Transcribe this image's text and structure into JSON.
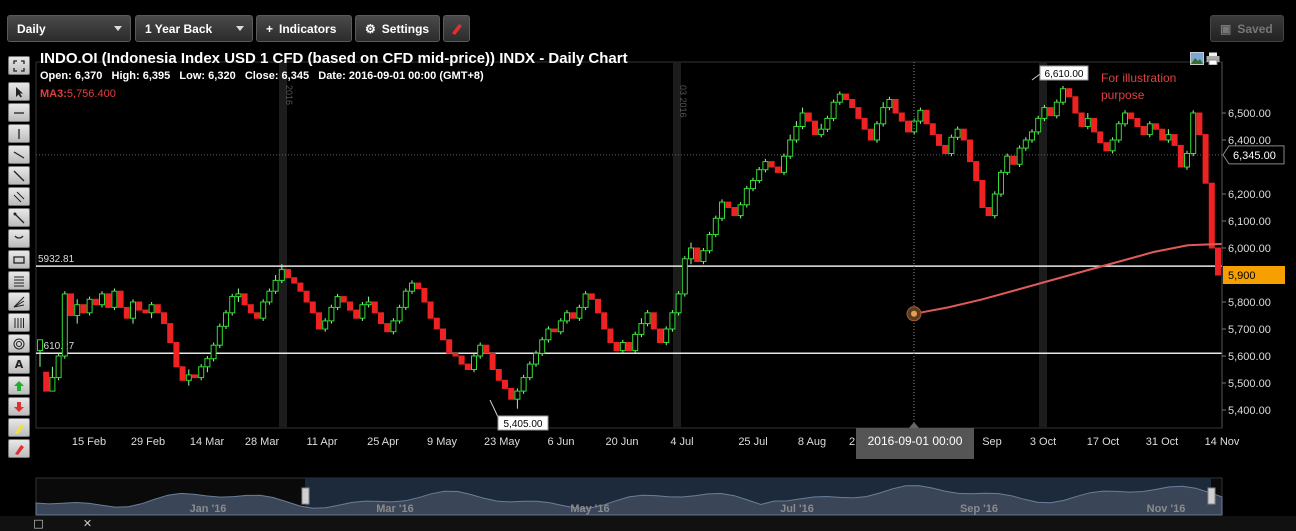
{
  "toolbar": {
    "interval": "Daily",
    "range": "1 Year Back",
    "indicators": "Indicators",
    "settings": "Settings",
    "saved": "Saved"
  },
  "header": {
    "title": "INDO.OI (Indonesia Index USD 1 CFD (based on CFD mid-price)) INDX - Daily Chart",
    "open_label": "Open:",
    "open": "6,370",
    "high_label": "High:",
    "high": "6,395",
    "low_label": "Low:",
    "low": "6,320",
    "close_label": "Close:",
    "close": "6,345",
    "date_label": "Date:",
    "date": "2016-09-01 00:00 (GMT+8)",
    "ma_label": "MA3:",
    "ma_value": "5,756.400"
  },
  "annotation": {
    "text1": "For illustration",
    "text2": "purpose"
  },
  "chart_data": {
    "type": "candlestick",
    "y_ticks": [
      "5,400.00",
      "5,500.00",
      "5,600.00",
      "5,700.00",
      "5,800.00",
      "5,900.00",
      "6,000.00",
      "6,100.00",
      "6,200.00",
      "6,300.00",
      "6,400.00",
      "6,500.00"
    ],
    "y_range": [
      5330,
      6680
    ],
    "x_labels": [
      "15 Feb",
      "29 Feb",
      "14 Mar",
      "28 Mar",
      "11 Apr",
      "25 Apr",
      "9 May",
      "23 May",
      "6 Jun",
      "20 Jun",
      "4 Jul",
      "25 Jul",
      "8 Aug",
      "2",
      "Sep",
      "3 Oct",
      "17 Oct",
      "31 Oct",
      "14 Nov"
    ],
    "crosshair_date": "2016-09-01 00:00",
    "horizontal_lines": [
      {
        "label": "5932.81",
        "value": 5932.81
      },
      {
        "label": "5610.27",
        "value": 5610.27
      }
    ],
    "price_callouts": [
      {
        "text": "6,610.00",
        "value": 6610
      },
      {
        "text": "5,405.00",
        "value": 5405
      }
    ],
    "current_price": {
      "text": "6,345.00",
      "value": 6345
    },
    "last_price": {
      "text": "5,900",
      "value": 5900
    },
    "month_separators": [
      "2016",
      "03 2016"
    ],
    "ma_series_values": [
      5756.4,
      5780,
      5810,
      5845,
      5880,
      5915,
      5950,
      5985,
      6010,
      6015
    ],
    "candles": [
      [
        5620,
        5660,
        5560,
        5540
      ],
      [
        5540,
        5470,
        5560,
        5450
      ],
      [
        5470,
        5520,
        5470,
        5560
      ],
      [
        5520,
        5600,
        5510,
        5610
      ],
      [
        5600,
        5830,
        5590,
        5840
      ],
      [
        5830,
        5750,
        5840,
        5740
      ],
      [
        5750,
        5790,
        5720,
        5810
      ],
      [
        5790,
        5760,
        5800,
        5730
      ],
      [
        5760,
        5810,
        5750,
        5820
      ],
      [
        5810,
        5790,
        5830,
        5770
      ],
      [
        5790,
        5830,
        5780,
        5840
      ],
      [
        5830,
        5780,
        5850,
        5760
      ],
      [
        5780,
        5840,
        5770,
        5850
      ],
      [
        5840,
        5780,
        5860,
        5770
      ],
      [
        5780,
        5740,
        5800,
        5730
      ],
      [
        5740,
        5800,
        5720,
        5810
      ],
      [
        5800,
        5770,
        5820,
        5760
      ],
      [
        5770,
        5760,
        5790,
        5740
      ],
      [
        5760,
        5790,
        5740,
        5800
      ],
      [
        5790,
        5760,
        5810,
        5740
      ],
      [
        5760,
        5720,
        5780,
        5700
      ],
      [
        5720,
        5650,
        5730,
        5640
      ],
      [
        5650,
        5560,
        5660,
        5550
      ],
      [
        5560,
        5510,
        5580,
        5500
      ],
      [
        5510,
        5530,
        5490,
        5550
      ],
      [
        5530,
        5520,
        5550,
        5500
      ],
      [
        5520,
        5560,
        5510,
        5570
      ],
      [
        5560,
        5590,
        5540,
        5600
      ],
      [
        5590,
        5640,
        5580,
        5650
      ],
      [
        5640,
        5710,
        5630,
        5720
      ],
      [
        5710,
        5760,
        5700,
        5770
      ],
      [
        5760,
        5820,
        5750,
        5830
      ],
      [
        5820,
        5830,
        5800,
        5850
      ],
      [
        5830,
        5790,
        5840,
        5770
      ],
      [
        5790,
        5760,
        5810,
        5750
      ],
      [
        5760,
        5740,
        5780,
        5720
      ],
      [
        5740,
        5800,
        5730,
        5810
      ],
      [
        5800,
        5840,
        5790,
        5850
      ],
      [
        5840,
        5880,
        5830,
        5900
      ],
      [
        5880,
        5920,
        5870,
        5940
      ],
      [
        5920,
        5890,
        5930,
        5870
      ],
      [
        5890,
        5870,
        5910,
        5850
      ],
      [
        5870,
        5840,
        5880,
        5820
      ],
      [
        5840,
        5800,
        5850,
        5780
      ],
      [
        5800,
        5760,
        5810,
        5740
      ],
      [
        5760,
        5700,
        5770,
        5690
      ],
      [
        5700,
        5730,
        5690,
        5740
      ],
      [
        5730,
        5780,
        5720,
        5790
      ],
      [
        5780,
        5820,
        5770,
        5830
      ],
      [
        5820,
        5800,
        5840,
        5790
      ],
      [
        5800,
        5770,
        5810,
        5750
      ],
      [
        5770,
        5740,
        5790,
        5730
      ],
      [
        5740,
        5790,
        5730,
        5800
      ],
      [
        5790,
        5800,
        5780,
        5820
      ],
      [
        5800,
        5760,
        5810,
        5750
      ],
      [
        5760,
        5720,
        5770,
        5700
      ],
      [
        5720,
        5690,
        5730,
        5680
      ],
      [
        5690,
        5730,
        5680,
        5740
      ],
      [
        5730,
        5780,
        5720,
        5790
      ],
      [
        5780,
        5840,
        5770,
        5850
      ],
      [
        5840,
        5870,
        5830,
        5880
      ],
      [
        5870,
        5850,
        5890,
        5830
      ],
      [
        5850,
        5800,
        5860,
        5780
      ],
      [
        5800,
        5740,
        5810,
        5730
      ],
      [
        5740,
        5700,
        5750,
        5690
      ],
      [
        5700,
        5660,
        5710,
        5650
      ],
      [
        5660,
        5610,
        5670,
        5600
      ],
      [
        5610,
        5600,
        5620,
        5580
      ],
      [
        5600,
        5570,
        5610,
        5550
      ],
      [
        5570,
        5550,
        5590,
        5540
      ],
      [
        5550,
        5600,
        5540,
        5610
      ],
      [
        5600,
        5640,
        5590,
        5650
      ],
      [
        5640,
        5610,
        5650,
        5590
      ],
      [
        5610,
        5550,
        5620,
        5540
      ],
      [
        5550,
        5510,
        5560,
        5490
      ],
      [
        5510,
        5480,
        5520,
        5460
      ],
      [
        5480,
        5440,
        5490,
        5420
      ],
      [
        5440,
        5470,
        5405,
        5480
      ],
      [
        5470,
        5520,
        5460,
        5530
      ],
      [
        5520,
        5570,
        5510,
        5580
      ],
      [
        5570,
        5610,
        5560,
        5620
      ],
      [
        5610,
        5660,
        5600,
        5670
      ],
      [
        5660,
        5700,
        5650,
        5710
      ],
      [
        5700,
        5690,
        5720,
        5670
      ],
      [
        5690,
        5730,
        5680,
        5740
      ],
      [
        5730,
        5760,
        5720,
        5770
      ],
      [
        5760,
        5740,
        5770,
        5720
      ],
      [
        5740,
        5780,
        5730,
        5790
      ],
      [
        5780,
        5830,
        5770,
        5840
      ],
      [
        5830,
        5810,
        5840,
        5790
      ],
      [
        5810,
        5760,
        5820,
        5750
      ],
      [
        5760,
        5700,
        5770,
        5690
      ],
      [
        5700,
        5650,
        5710,
        5640
      ],
      [
        5650,
        5620,
        5660,
        5600
      ],
      [
        5620,
        5650,
        5610,
        5660
      ],
      [
        5650,
        5620,
        5660,
        5600
      ],
      [
        5620,
        5680,
        5610,
        5690
      ],
      [
        5680,
        5720,
        5670,
        5740
      ],
      [
        5720,
        5760,
        5710,
        5770
      ],
      [
        5760,
        5700,
        5770,
        5690
      ],
      [
        5700,
        5650,
        5710,
        5630
      ],
      [
        5650,
        5700,
        5640,
        5710
      ],
      [
        5700,
        5760,
        5690,
        5770
      ],
      [
        5760,
        5830,
        5750,
        5840
      ],
      [
        5830,
        5960,
        5820,
        5970
      ],
      [
        5960,
        6000,
        5940,
        6020
      ],
      [
        6000,
        5950,
        6010,
        5940
      ],
      [
        5950,
        5990,
        5940,
        6000
      ],
      [
        5990,
        6050,
        5980,
        6060
      ],
      [
        6050,
        6110,
        6040,
        6120
      ],
      [
        6110,
        6170,
        6100,
        6180
      ],
      [
        6170,
        6150,
        6190,
        6130
      ],
      [
        6150,
        6120,
        6160,
        6100
      ],
      [
        6120,
        6160,
        6110,
        6170
      ],
      [
        6160,
        6220,
        6150,
        6230
      ],
      [
        6220,
        6250,
        6210,
        6260
      ],
      [
        6250,
        6290,
        6240,
        6300
      ],
      [
        6290,
        6320,
        6280,
        6330
      ],
      [
        6320,
        6300,
        6340,
        6290
      ],
      [
        6300,
        6280,
        6320,
        6260
      ],
      [
        6280,
        6340,
        6270,
        6350
      ],
      [
        6340,
        6400,
        6330,
        6420
      ],
      [
        6400,
        6450,
        6390,
        6470
      ],
      [
        6450,
        6500,
        6440,
        6520
      ],
      [
        6500,
        6470,
        6510,
        6450
      ],
      [
        6470,
        6420,
        6480,
        6400
      ],
      [
        6420,
        6440,
        6410,
        6460
      ],
      [
        6440,
        6480,
        6430,
        6490
      ],
      [
        6480,
        6540,
        6470,
        6550
      ],
      [
        6540,
        6570,
        6530,
        6580
      ],
      [
        6570,
        6550,
        6580,
        6530
      ],
      [
        6550,
        6520,
        6560,
        6500
      ],
      [
        6520,
        6480,
        6530,
        6460
      ],
      [
        6480,
        6440,
        6490,
        6420
      ],
      [
        6440,
        6400,
        6450,
        6380
      ],
      [
        6400,
        6460,
        6390,
        6470
      ],
      [
        6460,
        6520,
        6450,
        6540
      ],
      [
        6520,
        6550,
        6510,
        6560
      ],
      [
        6550,
        6500,
        6560,
        6490
      ],
      [
        6500,
        6470,
        6510,
        6450
      ],
      [
        6470,
        6430,
        6480,
        6420
      ],
      [
        6430,
        6470,
        6420,
        6480
      ],
      [
        6470,
        6510,
        6460,
        6520
      ],
      [
        6510,
        6460,
        6520,
        6440
      ],
      [
        6460,
        6420,
        6470,
        6400
      ],
      [
        6420,
        6380,
        6430,
        6360
      ],
      [
        6380,
        6350,
        6390,
        6340
      ],
      [
        6350,
        6410,
        6340,
        6420
      ],
      [
        6410,
        6440,
        6400,
        6450
      ],
      [
        6440,
        6400,
        6450,
        6380
      ],
      [
        6400,
        6320,
        6410,
        6310
      ],
      [
        6320,
        6250,
        6330,
        6230
      ],
      [
        6250,
        6150,
        6260,
        6130
      ],
      [
        6150,
        6120,
        6160,
        6100
      ],
      [
        6120,
        6200,
        6110,
        6210
      ],
      [
        6200,
        6280,
        6190,
        6290
      ],
      [
        6280,
        6340,
        6270,
        6350
      ],
      [
        6340,
        6310,
        6350,
        6290
      ],
      [
        6310,
        6370,
        6300,
        6380
      ],
      [
        6370,
        6400,
        6360,
        6410
      ],
      [
        6400,
        6430,
        6390,
        6440
      ],
      [
        6430,
        6480,
        6420,
        6490
      ],
      [
        6480,
        6520,
        6470,
        6530
      ],
      [
        6520,
        6490,
        6530,
        6470
      ],
      [
        6490,
        6540,
        6480,
        6550
      ],
      [
        6540,
        6590,
        6530,
        6600
      ],
      [
        6590,
        6560,
        6610,
        6550
      ],
      [
        6560,
        6500,
        6570,
        6490
      ],
      [
        6500,
        6450,
        6510,
        6430
      ],
      [
        6450,
        6480,
        6440,
        6500
      ],
      [
        6480,
        6430,
        6490,
        6410
      ],
      [
        6430,
        6390,
        6440,
        6370
      ],
      [
        6390,
        6360,
        6400,
        6340
      ],
      [
        6360,
        6400,
        6350,
        6410
      ],
      [
        6400,
        6460,
        6390,
        6470
      ],
      [
        6460,
        6500,
        6450,
        6510
      ],
      [
        6500,
        6480,
        6510,
        6460
      ],
      [
        6480,
        6450,
        6490,
        6430
      ],
      [
        6450,
        6420,
        6460,
        6400
      ],
      [
        6420,
        6460,
        6410,
        6470
      ],
      [
        6460,
        6440,
        6470,
        6420
      ],
      [
        6440,
        6400,
        6450,
        6380
      ],
      [
        6400,
        6420,
        6390,
        6440
      ],
      [
        6420,
        6380,
        6430,
        6360
      ],
      [
        6380,
        6300,
        6390,
        6280
      ],
      [
        6300,
        6350,
        6290,
        6360
      ],
      [
        6350,
        6500,
        6340,
        6510
      ],
      [
        6500,
        6420,
        6510,
        6400
      ],
      [
        6420,
        6240,
        6430,
        6230
      ],
      [
        6240,
        6000,
        6250,
        5980
      ],
      [
        6000,
        5900,
        6010,
        5880
      ]
    ]
  },
  "navigator": {
    "labels": [
      "Jan '16",
      "Mar '16",
      "May '16",
      "Jul '16",
      "Sep '16",
      "Nov '16"
    ]
  }
}
